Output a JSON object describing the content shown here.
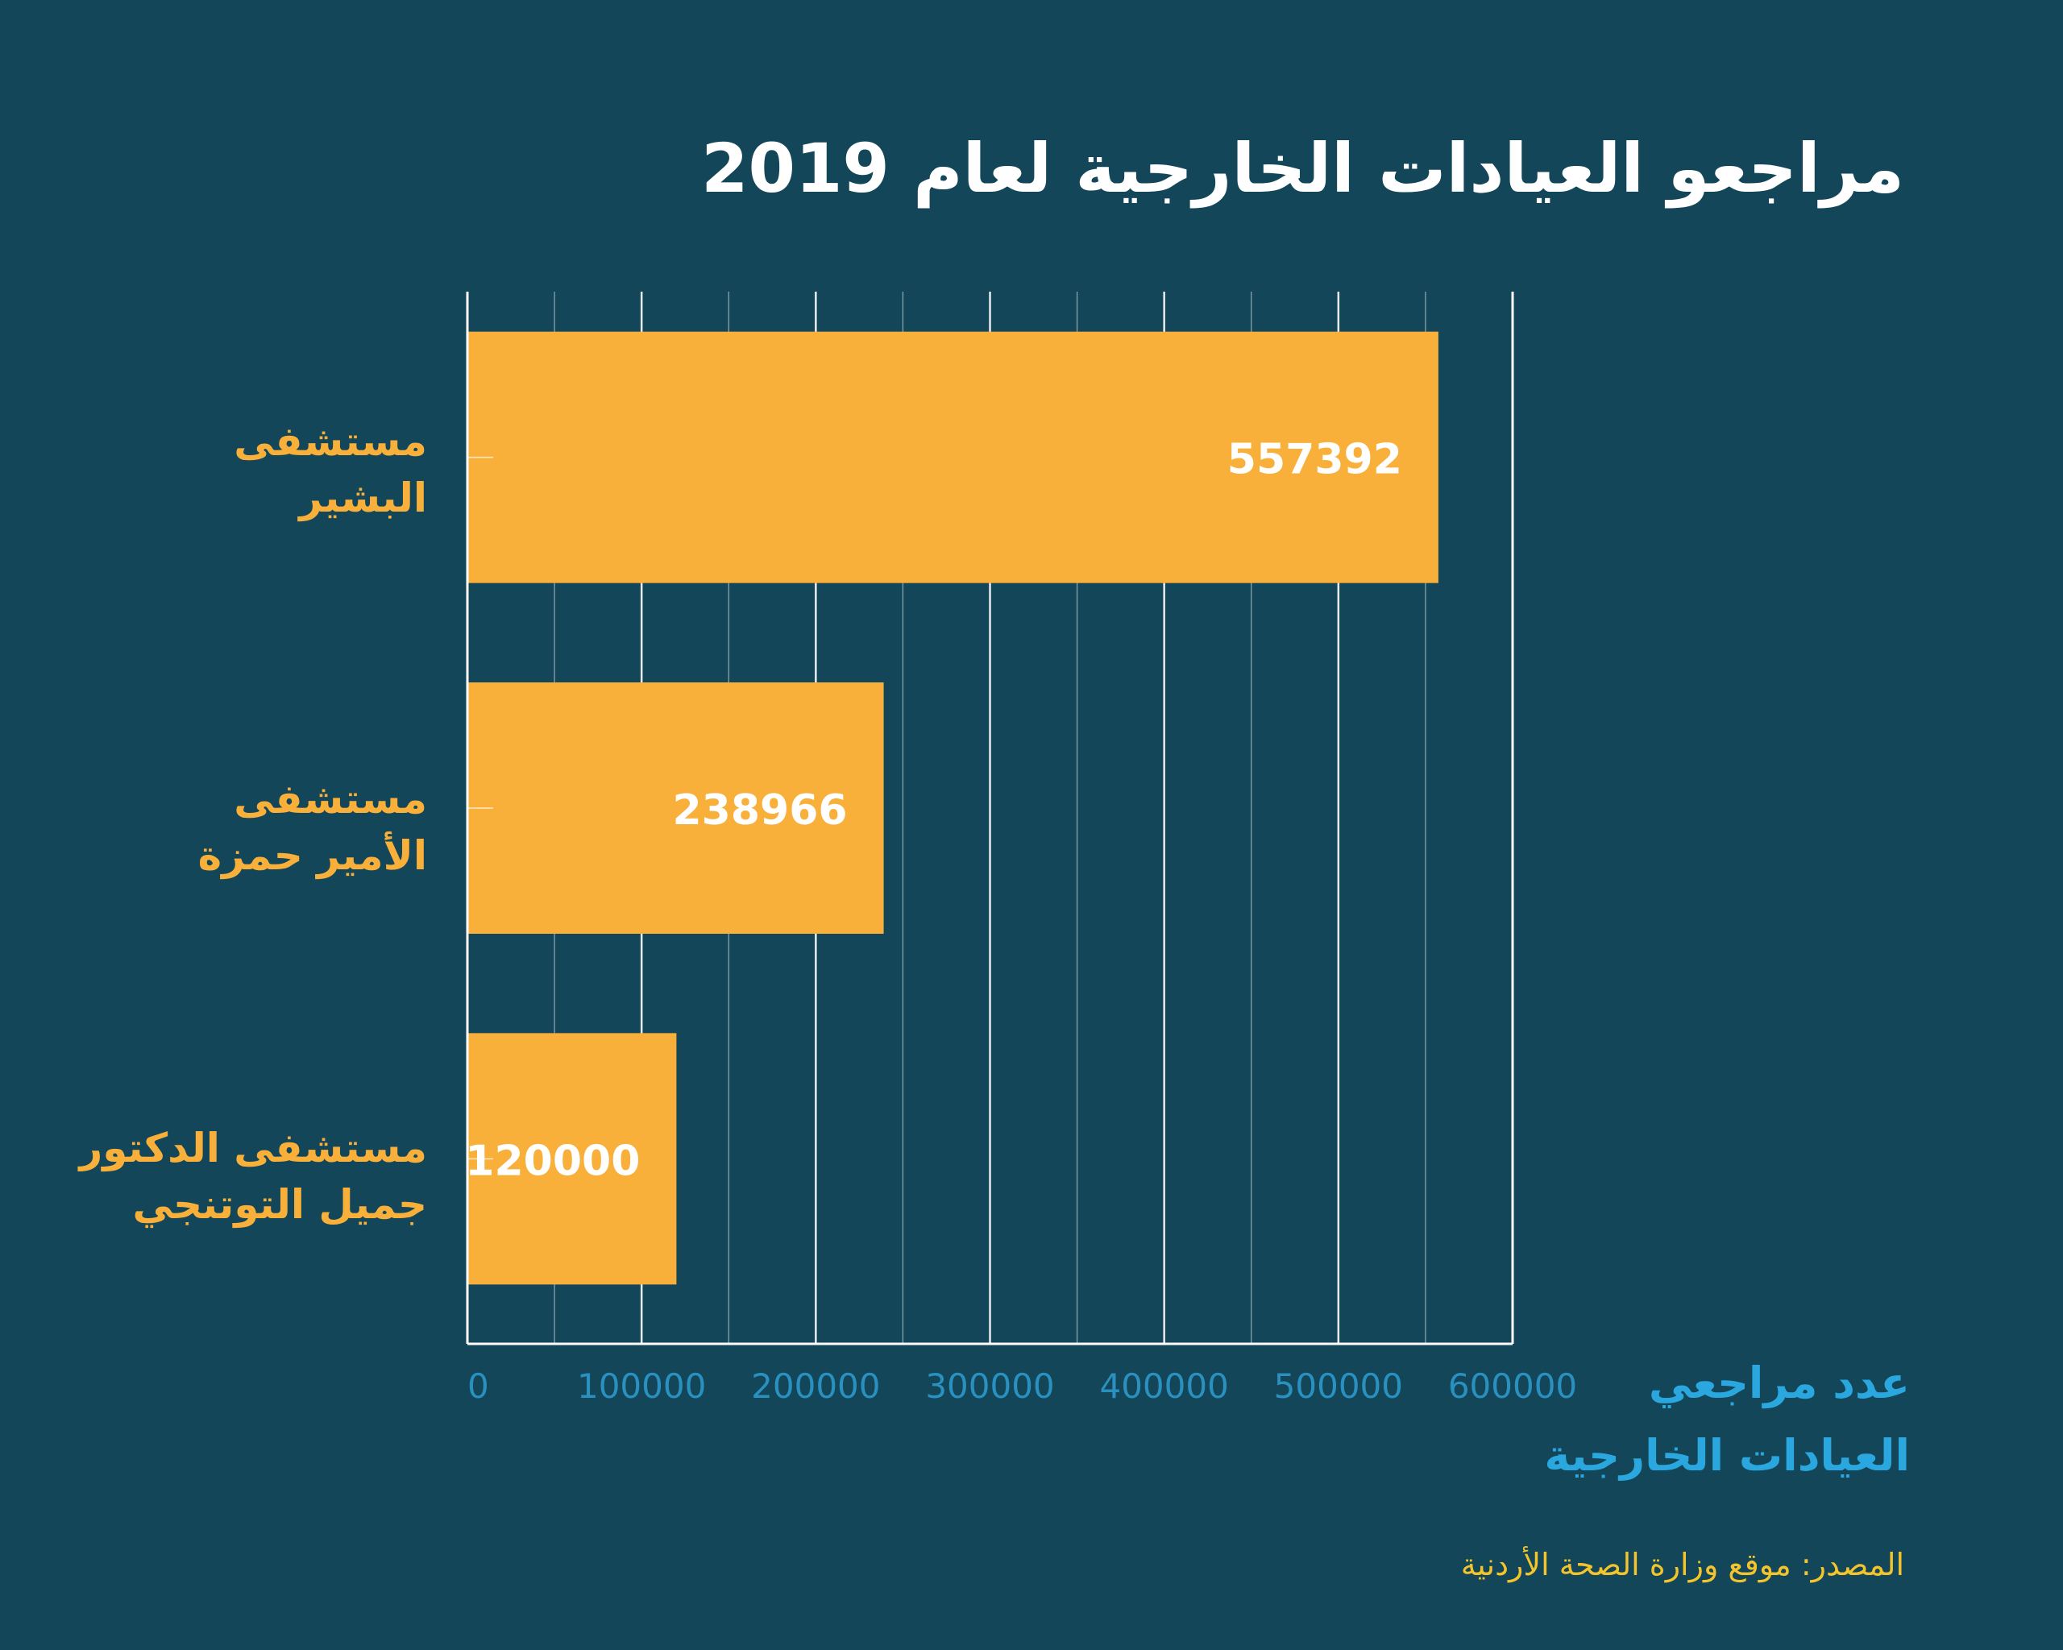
{
  "chart_data": {
    "type": "bar",
    "orientation": "horizontal",
    "title": "مراجعو العيادات الخارجية لعام 2019",
    "categories": [
      [
        "مستشفى",
        "البشير"
      ],
      [
        "مستشفى",
        "الأمير حمزة"
      ],
      [
        "مستشفى الدكتور",
        "جميل التوتنجي"
      ]
    ],
    "values": [
      557392,
      238966,
      120000
    ],
    "value_labels": [
      "557392",
      "238966",
      "120000"
    ],
    "xlabel": [
      "عدد مراجعي",
      "العيادات الخارجية"
    ],
    "xlim": [
      0,
      600000
    ],
    "x_ticks": [
      0,
      100000,
      200000,
      300000,
      400000,
      500000,
      600000
    ],
    "x_tick_labels": [
      "0",
      "100000",
      "200000",
      "300000",
      "400000",
      "500000",
      "600000"
    ],
    "grid": true,
    "source": "المصدر: موقع وزارة الصحة الأردنية"
  },
  "colors": {
    "background": "#124658",
    "bar": "#f9b03a",
    "category_label": "#f9b03a",
    "value_label": "#ffffff",
    "title": "#ffffff",
    "axis_title": "#2aa7df",
    "tick_label": "#2a90c0",
    "grid": "#ffffff",
    "source": "#f3c42b"
  }
}
